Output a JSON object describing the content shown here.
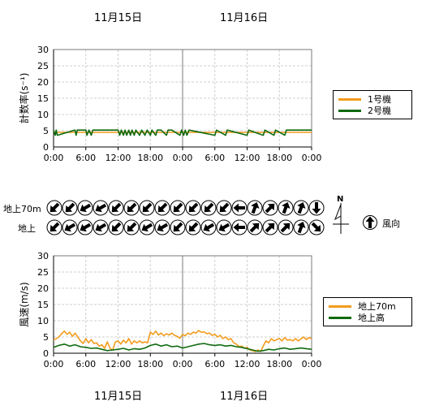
{
  "top_dates": [
    "11月15日",
    "11月16日"
  ],
  "bottom_dates": [
    "11月15日",
    "11月16日"
  ],
  "direction_row_labels": [
    "地上70m",
    "地上"
  ],
  "compass_north": "N",
  "wind_dir_legend": "風向",
  "colors": {
    "orange": "#f29c1e",
    "green": "#0f6a0f",
    "grid": "#cfcfcf"
  },
  "chart_data": [
    {
      "type": "line",
      "ylabel": "計数率(s⁻¹)",
      "ylim": [
        0,
        30
      ],
      "yticks": [
        0,
        5,
        10,
        15,
        20,
        25,
        30
      ],
      "xlim": [
        0,
        48
      ],
      "xticks": [
        0,
        6,
        12,
        18,
        24,
        30,
        36,
        42,
        48
      ],
      "xtick_labels": [
        "0:00",
        "6:00",
        "12:00",
        "18:00",
        "0:00",
        "6:00",
        "12:00",
        "18:00",
        "0:00"
      ],
      "legend": [
        "1号機",
        "2号機"
      ],
      "series": [
        {
          "name": "1号機",
          "color": "#f29c1e",
          "x": [
            0,
            48
          ],
          "y": [
            4.5,
            4.5
          ]
        },
        {
          "name": "2号機",
          "color": "#0f6a0f",
          "x": [
            0,
            0.3,
            0.5,
            0.7,
            4,
            4.2,
            4.4,
            6,
            6.2,
            6.6,
            7,
            7.3,
            8,
            12,
            12.3,
            12.6,
            13,
            13.3,
            13.6,
            14,
            14.3,
            14.6,
            15,
            15.3,
            16,
            16.4,
            17,
            17.4,
            18,
            18.3,
            19,
            19.3,
            20,
            21,
            21.3,
            22,
            23.5,
            23.8,
            24.2,
            24.5,
            24.8,
            25.2,
            30,
            30.3,
            32,
            32.3,
            36,
            36.3,
            39,
            39.3,
            41,
            41.3,
            43,
            43.3,
            48
          ],
          "y": [
            5.2,
            3.6,
            5.2,
            3.6,
            5.2,
            3.6,
            5.2,
            5.2,
            3.6,
            5.2,
            3.6,
            5.2,
            5.2,
            5.2,
            3.6,
            5.2,
            3.6,
            5.2,
            3.6,
            5.2,
            3.6,
            5.2,
            3.6,
            5.2,
            3.6,
            5.2,
            3.6,
            5.2,
            3.6,
            5.2,
            3.6,
            5.2,
            5.2,
            3.6,
            5.2,
            5.2,
            3.6,
            5.2,
            3.6,
            5.2,
            3.6,
            5.2,
            3.6,
            5.2,
            3.6,
            5.2,
            3.6,
            5.2,
            3.6,
            5.2,
            3.6,
            5.2,
            3.6,
            5.2,
            5.2
          ]
        }
      ]
    },
    {
      "type": "line",
      "ylabel": "風速(m/s)",
      "ylim": [
        0,
        30
      ],
      "yticks": [
        0,
        5,
        10,
        15,
        20,
        25,
        30
      ],
      "xlim": [
        0,
        48
      ],
      "xticks": [
        0,
        6,
        12,
        18,
        24,
        30,
        36,
        42,
        48
      ],
      "xtick_labels": [
        "0:00",
        "6:00",
        "12:00",
        "18:00",
        "0:00",
        "6:00",
        "12:00",
        "18:00",
        "0:00"
      ],
      "legend": [
        "地上70m",
        "地上高"
      ],
      "series": [
        {
          "name": "地上70m",
          "color": "#f29c1e",
          "x": [
            0,
            1,
            1.5,
            2,
            2.5,
            3,
            3.5,
            4,
            4.5,
            5,
            5.5,
            6,
            6.5,
            7,
            7.5,
            8,
            8.5,
            9,
            9.5,
            10,
            10.5,
            11,
            11.5,
            12,
            12.5,
            13,
            13.5,
            14,
            14.5,
            15,
            15.5,
            16,
            16.5,
            17,
            17.5,
            18,
            18.5,
            19,
            19.5,
            20,
            20.5,
            21,
            21.5,
            22,
            22.5,
            23,
            23.5,
            24,
            24.5,
            25,
            25.5,
            26,
            26.5,
            27,
            27.5,
            28,
            28.5,
            29,
            29.5,
            30,
            30.5,
            31,
            31.5,
            32,
            32.5,
            33,
            33.5,
            34,
            34.5,
            35,
            35.5,
            36,
            36.5,
            37,
            37.5,
            38,
            38.5,
            39,
            39.5,
            40,
            40.5,
            41,
            41.5,
            42,
            42.5,
            43,
            43.5,
            44,
            44.5,
            45,
            45.5,
            46,
            46.5,
            47,
            47.5,
            48
          ],
          "y": [
            4,
            5,
            6,
            6.8,
            5.8,
            6.5,
            5.2,
            6.2,
            5,
            3.8,
            3,
            4.5,
            3.2,
            4.2,
            3,
            3.2,
            2.2,
            2.6,
            1.5,
            3.5,
            1.5,
            1,
            3.5,
            3.8,
            2.8,
            4,
            3.2,
            4.5,
            2.8,
            3.8,
            3.2,
            3.8,
            3.2,
            3.5,
            3.2,
            6.5,
            5.8,
            6.8,
            5.6,
            6.2,
            5.4,
            6,
            5.6,
            6.2,
            5.5,
            5.2,
            4.6,
            5.8,
            5.4,
            6.2,
            5.8,
            6.5,
            6.2,
            7,
            6.4,
            6.6,
            6,
            6.2,
            5.5,
            5.8,
            5,
            5.5,
            4.5,
            5,
            4.2,
            4.5,
            3.2,
            2.8,
            2,
            2.2,
            1.5,
            1.8,
            1,
            0.8,
            0.5,
            1,
            0.5,
            2.2,
            3.8,
            3.2,
            4.5,
            3.8,
            4.2,
            4.5,
            3.8,
            4.8,
            4,
            4.2,
            3.8,
            4.5,
            3.8,
            4.4,
            5,
            4.2,
            4.8,
            4.5
          ],
          "note": ""
        },
        {
          "name": "地上高",
          "color": "#0f6a0f",
          "x": [
            0,
            1,
            2,
            3,
            4,
            5,
            6,
            7,
            8,
            9,
            10,
            11,
            12,
            13,
            14,
            15,
            16,
            17,
            18,
            19,
            20,
            21,
            22,
            23,
            24,
            25,
            26,
            27,
            28,
            29,
            30,
            31,
            32,
            33,
            34,
            35,
            36,
            37,
            38,
            39,
            40,
            41,
            42,
            43,
            44,
            45,
            46,
            47,
            48
          ],
          "y": [
            1.8,
            2.4,
            2.8,
            2.2,
            2.6,
            2,
            1.8,
            1.5,
            1.6,
            1.2,
            0.8,
            1,
            1.2,
            1.5,
            1,
            1.4,
            1.2,
            1.6,
            2.4,
            2.8,
            2.2,
            2.6,
            2,
            2.2,
            1.6,
            2,
            2.4,
            2.8,
            3,
            2.6,
            2.4,
            2.6,
            2.2,
            2.4,
            2,
            1.8,
            1.4,
            1,
            0.6,
            0.8,
            1.2,
            1,
            1.4,
            1.6,
            1.2,
            1.4,
            1.6,
            1.4,
            1.2
          ]
        }
      ]
    }
  ],
  "wind_directions": {
    "note": "",
    "row_70m": [
      225,
      225,
      240,
      240,
      225,
      225,
      225,
      225,
      225,
      225,
      225,
      225,
      270,
      20,
      45,
      20,
      20,
      180
    ],
    "row_ground": [
      225,
      240,
      240,
      240,
      225,
      225,
      240,
      240,
      225,
      225,
      240,
      240,
      270,
      45,
      45,
      45,
      20,
      135
    ],
    "legend_arrow_deg": 0
  }
}
